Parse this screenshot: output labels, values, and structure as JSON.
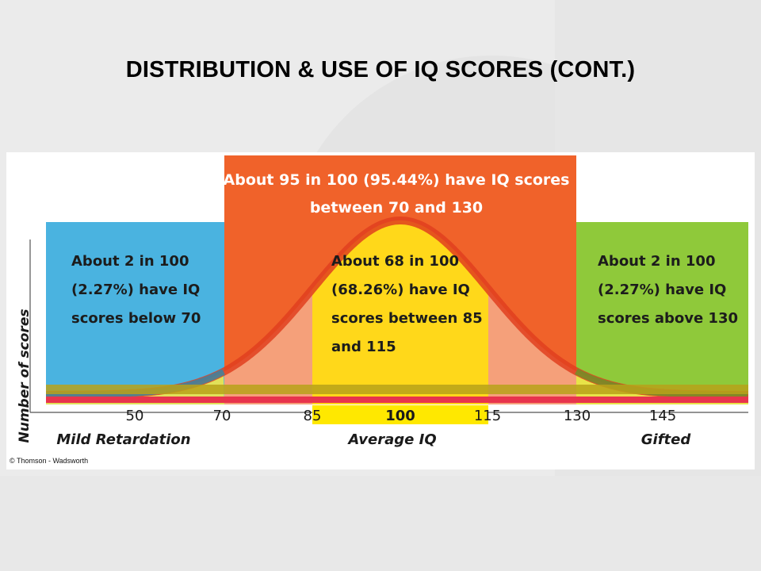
{
  "slide": {
    "title": "DISTRIBUTION & USE OF IQ SCORES (CONT.)"
  },
  "figure": {
    "credit": "© Thomson - Wadsworth"
  },
  "chart_data": {
    "type": "area",
    "ylabel": "Number of scores",
    "x_ticks": [
      "50",
      "70",
      "85",
      "100",
      "115",
      "130",
      "145"
    ],
    "region_labels": [
      {
        "text": "Mild Retardation",
        "x": 50
      },
      {
        "text": "Average IQ",
        "x": 100
      },
      {
        "text": "Gifted",
        "x": 145
      }
    ],
    "regions": [
      {
        "range": [
          null,
          70
        ],
        "color": "#4ab3e0",
        "lines": [
          "About 2 in 100",
          "(2.27%) have IQ",
          "scores below 70"
        ]
      },
      {
        "range": [
          70,
          130
        ],
        "color": "#f0622a",
        "lines": [
          "About 95 in 100 (95.44%) have IQ scores",
          "between 70 and 130"
        ]
      },
      {
        "range": [
          85,
          115
        ],
        "color": "#ffd81a",
        "lines": [
          "About 68 in 100",
          "(68.26%) have IQ",
          "scores between 85",
          "and 115"
        ]
      },
      {
        "range": [
          130,
          null
        ],
        "color": "#8fc93a",
        "lines": [
          "About 2 in 100",
          "(2.27%) have IQ",
          "scores above 130"
        ]
      }
    ],
    "distribution": {
      "mean": 100,
      "sd": 15
    }
  }
}
